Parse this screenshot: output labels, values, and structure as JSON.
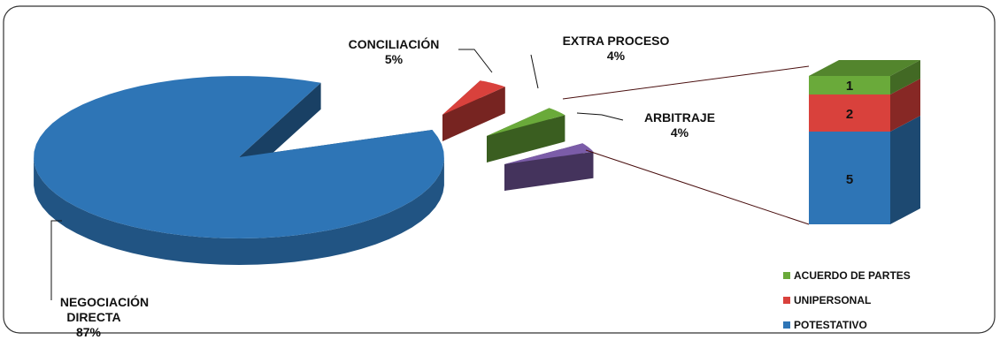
{
  "chart_data": [
    {
      "type": "pie",
      "title": "",
      "slices": [
        {
          "label": "NEGOCIACIÓN DIRECTA",
          "pct_label": "87%",
          "value": 87,
          "color": "#2E75B6"
        },
        {
          "label": "CONCILIACIÓN",
          "pct_label": "5%",
          "value": 5,
          "color": "#D9413C"
        },
        {
          "label": "EXTRA PROCESO",
          "pct_label": "4%",
          "value": 4,
          "color": "#6AAA3A"
        },
        {
          "label": "ARBITRAJE",
          "pct_label": "4%",
          "value": 4,
          "color": "#7B5CA8"
        }
      ]
    },
    {
      "type": "bar",
      "stacked": true,
      "title": "",
      "segments": [
        {
          "label": "POTESTATIVO",
          "value": 5,
          "color": "#2E75B6"
        },
        {
          "label": "UNIPERSONAL",
          "value": 2,
          "color": "#D9413C"
        },
        {
          "label": "ACUERDO DE PARTES",
          "value": 1,
          "color": "#6AAA3A"
        }
      ],
      "legend": {
        "position": "bottom-right",
        "items": [
          "ACUERDO DE PARTES",
          "UNIPERSONAL",
          "POTESTATIVO"
        ]
      }
    }
  ]
}
